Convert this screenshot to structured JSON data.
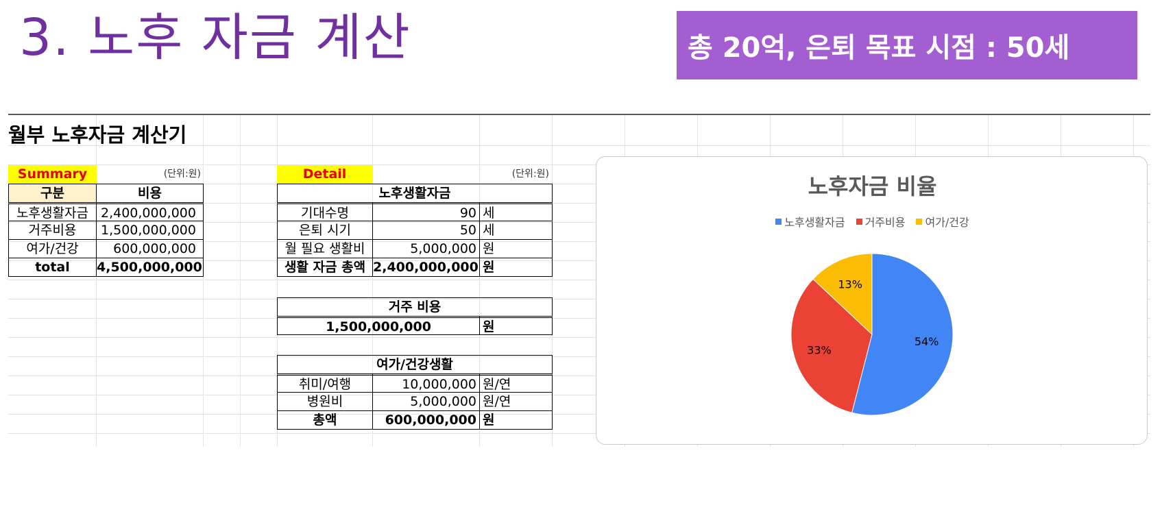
{
  "slide": {
    "title": "3. 노후 자금 계산",
    "goal_banner": "총 20억, 은퇴 목표 시점  : 50세"
  },
  "sheet": {
    "heading": "월부 노후자금 계산기",
    "summary": {
      "tag": "Summary",
      "unit": "(단위:원)",
      "header": {
        "category": "구분",
        "cost": "비용"
      },
      "rows": [
        {
          "category": "노후생활자금",
          "cost": "2,400,000,000"
        },
        {
          "category": "거주비용",
          "cost": "1,500,000,000"
        },
        {
          "category": "여가/건강",
          "cost": "600,000,000"
        }
      ],
      "total": {
        "category": "total",
        "cost": "4,500,000,000"
      }
    },
    "detail": {
      "tag": "Detail",
      "unit": "(단위:원)",
      "living": {
        "title": "노후생활자금",
        "rows": [
          {
            "label": "기대수명",
            "value": "90",
            "unit": "세"
          },
          {
            "label": "은퇴 시기",
            "value": "50",
            "unit": "세"
          },
          {
            "label": "월 필요 생활비",
            "value": "5,000,000",
            "unit": "원"
          }
        ],
        "total": {
          "label": "생활 자금 총액",
          "value": "2,400,000,000",
          "unit": "원"
        }
      },
      "housing": {
        "title": "거주 비용",
        "value": "1,500,000,000",
        "unit": "원"
      },
      "leisure": {
        "title": "여가/건강생활",
        "rows": [
          {
            "label": "취미/여행",
            "value": "10,000,000",
            "unit": "원/연"
          },
          {
            "label": "병원비",
            "value": "5,000,000",
            "unit": "원/연"
          }
        ],
        "total": {
          "label": "총액",
          "value": "600,000,000",
          "unit": "원"
        }
      }
    }
  },
  "chart_data": {
    "type": "pie",
    "title": "노후자금 비율",
    "legend_position": "top",
    "categories": [
      "노후생활자금",
      "거주비용",
      "여가/건강"
    ],
    "values": [
      54,
      33,
      13
    ],
    "labels": [
      "54%",
      "33%",
      "13%"
    ],
    "colors": [
      "#4285f4",
      "#ea4335",
      "#fbbc04"
    ]
  }
}
